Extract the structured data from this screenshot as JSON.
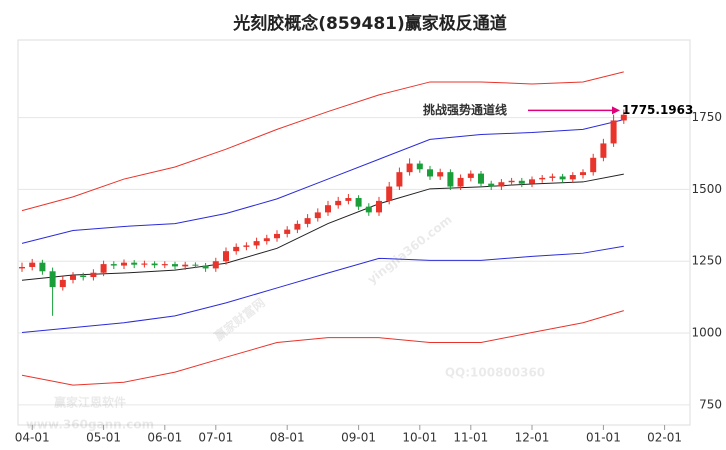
{
  "chart_data": {
    "type": "candlestick",
    "title": "光刻胶概念(859481)赢家极反通道",
    "categories": [
      null,
      "04-01",
      null,
      null,
      null,
      null,
      null,
      null,
      "05-01",
      null,
      null,
      null,
      null,
      null,
      "06-01",
      null,
      null,
      null,
      null,
      "07-01",
      null,
      null,
      null,
      null,
      null,
      null,
      "08-01",
      null,
      null,
      null,
      null,
      null,
      null,
      "09-01",
      null,
      null,
      null,
      null,
      null,
      "10-01",
      null,
      null,
      null,
      null,
      "11-01",
      null,
      null,
      null,
      null,
      null,
      "12-01",
      null,
      null,
      null,
      null,
      null,
      null,
      "01-01",
      null,
      null,
      null,
      null,
      null,
      "02-01",
      null
    ],
    "open": [
      1225,
      1230,
      1245,
      1215,
      1160,
      1185,
      1200,
      1195,
      1210,
      1240,
      1235,
      1245,
      1238,
      1242,
      1236,
      1240,
      1232,
      1238,
      1235,
      1225,
      1250,
      1285,
      1300,
      1305,
      1320,
      1330,
      1345,
      1360,
      1380,
      1400,
      1420,
      1445,
      1460,
      1470,
      1440,
      1420,
      1460,
      1510,
      1560,
      1590,
      1570,
      1545,
      1560,
      1510,
      1540,
      1555,
      1520,
      1510,
      1525,
      1530,
      1520,
      1535,
      1540,
      1545,
      1535,
      1550,
      1560,
      1610,
      1660,
      1740,
      null,
      null,
      null,
      null,
      null
    ],
    "high": [
      1245,
      1258,
      1255,
      1228,
      1198,
      1212,
      1210,
      1222,
      1252,
      1250,
      1256,
      1254,
      1252,
      1250,
      1250,
      1248,
      1248,
      1246,
      1244,
      1262,
      1298,
      1312,
      1316,
      1332,
      1342,
      1358,
      1372,
      1392,
      1414,
      1434,
      1460,
      1474,
      1484,
      1480,
      1452,
      1474,
      1526,
      1576,
      1608,
      1600,
      1582,
      1572,
      1570,
      1552,
      1566,
      1564,
      1530,
      1536,
      1540,
      1540,
      1545,
      1550,
      1555,
      1554,
      1560,
      1570,
      1624,
      1676,
      1760,
      1778,
      null,
      null,
      null,
      null,
      null
    ],
    "low": [
      1213,
      1218,
      1203,
      1060,
      1148,
      1173,
      1183,
      1183,
      1198,
      1223,
      1223,
      1226,
      1228,
      1226,
      1226,
      1222,
      1220,
      1226,
      1213,
      1213,
      1238,
      1273,
      1288,
      1293,
      1308,
      1318,
      1333,
      1348,
      1368,
      1388,
      1408,
      1433,
      1448,
      1428,
      1408,
      1408,
      1448,
      1498,
      1548,
      1558,
      1533,
      1533,
      1498,
      1498,
      1528,
      1508,
      1498,
      1498,
      1513,
      1508,
      1508,
      1523,
      1528,
      1523,
      1523,
      1538,
      1548,
      1598,
      1648,
      1728,
      null,
      null,
      null,
      null,
      null
    ],
    "close": [
      1230,
      1245,
      1215,
      1160,
      1185,
      1200,
      1195,
      1210,
      1240,
      1235,
      1245,
      1238,
      1242,
      1236,
      1240,
      1232,
      1238,
      1235,
      1225,
      1250,
      1285,
      1300,
      1305,
      1320,
      1330,
      1345,
      1360,
      1380,
      1400,
      1420,
      1445,
      1460,
      1470,
      1440,
      1420,
      1460,
      1510,
      1560,
      1590,
      1570,
      1545,
      1560,
      1510,
      1540,
      1555,
      1520,
      1510,
      1525,
      1530,
      1520,
      1535,
      1540,
      1545,
      1535,
      1550,
      1560,
      1610,
      1660,
      1740,
      1760,
      null,
      null,
      null,
      null,
      null
    ],
    "up_color": "#e8342b",
    "down_color": "#1a9e3a",
    "series": [
      {
        "color": "#e8342b",
        "x": [
          0,
          5,
          10,
          15,
          20,
          25,
          30,
          35,
          40,
          45,
          50,
          55,
          59
        ],
        "values": [
          1426,
          1474,
          1536,
          1578,
          1640,
          1709,
          1771,
          1829,
          1874,
          1874,
          1867,
          1874,
          1909
        ]
      },
      {
        "color": "#2b2bd8",
        "x": [
          0,
          5,
          10,
          15,
          20,
          25,
          30,
          35,
          40,
          45,
          50,
          55,
          59
        ],
        "values": [
          1312,
          1357,
          1371,
          1381,
          1416,
          1467,
          1536,
          1605,
          1674,
          1691,
          1698,
          1709,
          1743
        ]
      },
      {
        "color": "#222222",
        "x": [
          0,
          5,
          10,
          15,
          20,
          25,
          30,
          35,
          40,
          45,
          50,
          55,
          59
        ],
        "values": [
          1184,
          1202,
          1209,
          1219,
          1243,
          1295,
          1381,
          1450,
          1502,
          1509,
          1519,
          1526,
          1553
        ]
      },
      {
        "color": "#2b2bd8",
        "x": [
          0,
          5,
          10,
          15,
          20,
          25,
          30,
          35,
          40,
          45,
          50,
          55,
          59
        ],
        "values": [
          1002,
          1019,
          1036,
          1060,
          1105,
          1157,
          1209,
          1260,
          1253,
          1253,
          1267,
          1278,
          1302
        ]
      },
      {
        "color": "#e8342b",
        "x": [
          0,
          5,
          10,
          15,
          20,
          25,
          30,
          35,
          40,
          45,
          50,
          55,
          59
        ],
        "values": [
          853,
          819,
          829,
          864,
          916,
          967,
          984,
          984,
          967,
          967,
          1002,
          1036,
          1078
        ]
      }
    ],
    "ylim": [
      680,
      2020
    ],
    "yticks": [
      750,
      1000,
      1250,
      1500,
      1750
    ],
    "grid": true,
    "annotation": {
      "text": "挑战强势通道线",
      "value_label": "1775.1963",
      "value": 1775.1963,
      "color": "#e0007a"
    },
    "watermarks": [
      "赢家财富网",
      "赢家江恩软件",
      "www.360gann.com",
      "QQ:100800360",
      "yingjia360.com"
    ]
  }
}
